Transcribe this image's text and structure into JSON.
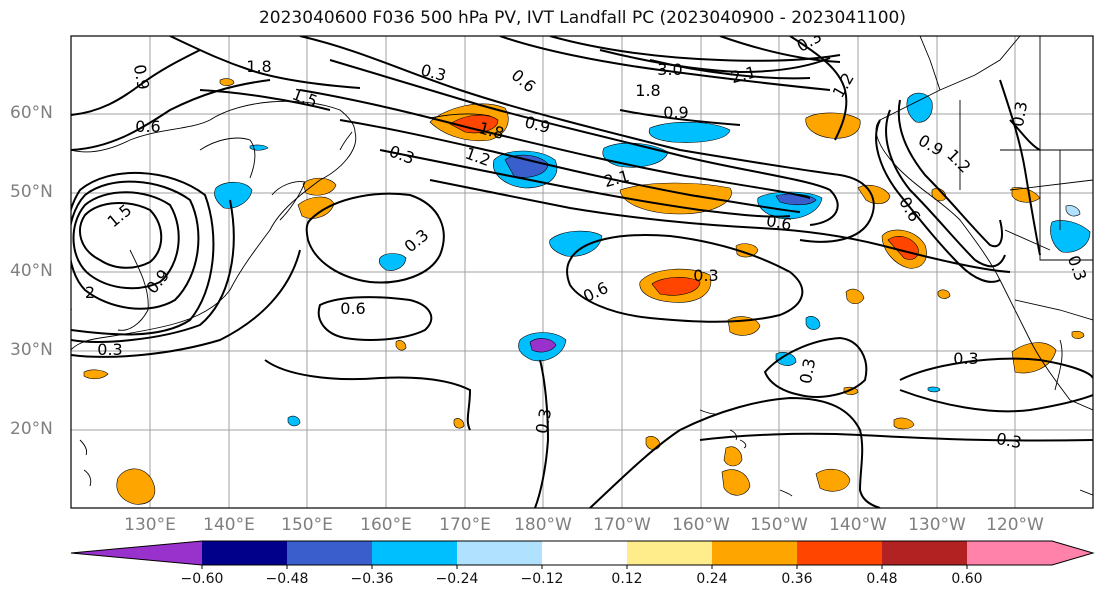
{
  "title": "2023040600 F036 500 hPa PV, IVT Landfall PC (2023040900 - 2023041100)",
  "lat_labels": [
    "60°N",
    "50°N",
    "40°N",
    "30°N",
    "20°N"
  ],
  "lon_labels": [
    "130°E",
    "140°E",
    "150°E",
    "160°E",
    "170°E",
    "180°W",
    "170°W",
    "160°W",
    "150°W",
    "140°W",
    "130°W",
    "120°W"
  ],
  "colorbar": {
    "tick_labels": [
      "−0.60",
      "−0.48",
      "−0.36",
      "−0.24",
      "−0.12",
      "0.12",
      "0.24",
      "0.36",
      "0.48",
      "0.60"
    ],
    "colors": [
      "#9932cc",
      "#00008b",
      "#3a5fcd",
      "#00bfff",
      "#b0e2ff",
      "#ffffff",
      "#ffec8b",
      "#ffa500",
      "#ff4500",
      "#b22222",
      "#ff82ab"
    ]
  },
  "contour_labels": [
    "0.9",
    "0.6",
    "1.8",
    "1.5",
    "0.3",
    "0.6",
    "3.0",
    "2.1",
    "1.8",
    "1.2",
    "0.9",
    "0.3",
    "1.8",
    "0.9",
    "0.3",
    "1.2",
    "2.1",
    "0.9",
    "0.6",
    "0.6",
    "0.3",
    "1.5",
    "0.9",
    "0.3",
    "0.6",
    "0.3",
    "0.6",
    "0.3",
    "0.3",
    "0.3",
    "0.3",
    "0.3",
    "0.3",
    "1.2",
    "2"
  ]
}
